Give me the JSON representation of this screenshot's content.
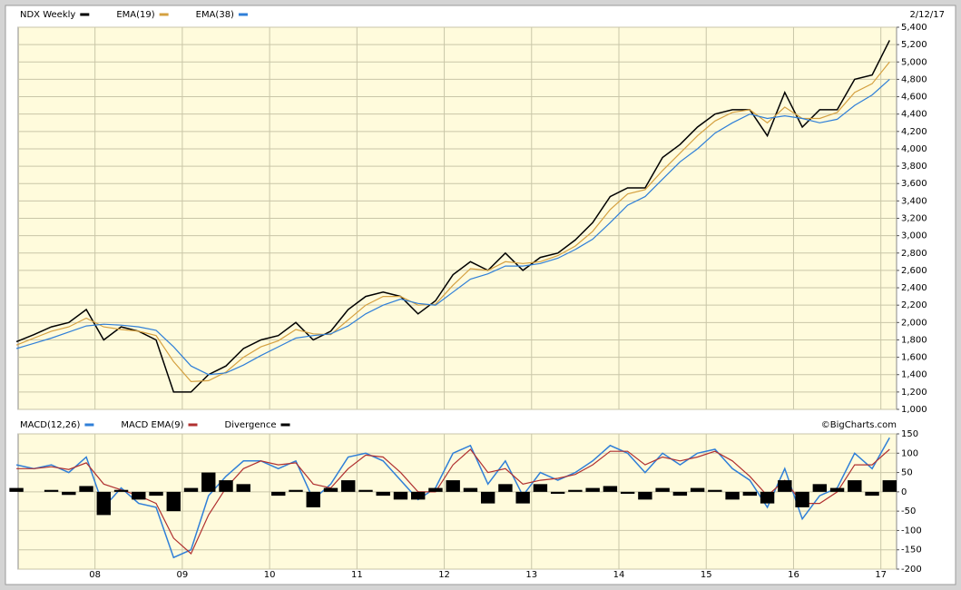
{
  "chart_data": [
    {
      "type": "line",
      "date": "2/12/17",
      "x": [
        2007.1,
        2007.3,
        2007.5,
        2007.7,
        2007.9,
        2008.1,
        2008.3,
        2008.5,
        2008.7,
        2008.9,
        2009.1,
        2009.3,
        2009.5,
        2009.7,
        2009.9,
        2010.1,
        2010.3,
        2010.5,
        2010.7,
        2010.9,
        2011.1,
        2011.3,
        2011.5,
        2011.7,
        2011.9,
        2012.1,
        2012.3,
        2012.5,
        2012.7,
        2012.9,
        2013.1,
        2013.3,
        2013.5,
        2013.7,
        2013.9,
        2014.1,
        2014.3,
        2014.5,
        2014.7,
        2014.9,
        2015.1,
        2015.3,
        2015.5,
        2015.7,
        2015.9,
        2016.1,
        2016.3,
        2016.5,
        2016.7,
        2016.9,
        2017.1
      ],
      "series": [
        {
          "name": "NDX Weekly",
          "color": "#000000",
          "values": [
            1780,
            1860,
            1950,
            2000,
            2150,
            1800,
            1950,
            1900,
            1800,
            1200,
            1200,
            1400,
            1500,
            1700,
            1800,
            1850,
            2000,
            1800,
            1900,
            2150,
            2300,
            2350,
            2300,
            2100,
            2250,
            2550,
            2700,
            2600,
            2800,
            2600,
            2750,
            2800,
            2950,
            3150,
            3450,
            3550,
            3550,
            3900,
            4050,
            4250,
            4400,
            4450,
            4450,
            4150,
            4650,
            4250,
            4450,
            4450,
            4800,
            4850,
            5250
          ]
        },
        {
          "name": "EMA(19)",
          "color": "#d4a040",
          "values": [
            1740,
            1820,
            1900,
            1950,
            2050,
            1950,
            1920,
            1900,
            1850,
            1550,
            1320,
            1330,
            1430,
            1600,
            1720,
            1790,
            1920,
            1870,
            1860,
            2030,
            2200,
            2300,
            2300,
            2200,
            2210,
            2430,
            2620,
            2600,
            2700,
            2680,
            2700,
            2770,
            2880,
            3050,
            3300,
            3480,
            3530,
            3750,
            3950,
            4150,
            4320,
            4420,
            4450,
            4300,
            4480,
            4350,
            4350,
            4420,
            4650,
            4750,
            5000
          ]
        },
        {
          "name": "EMA(38)",
          "color": "#2f7fd8",
          "values": [
            1700,
            1760,
            1820,
            1890,
            1960,
            1980,
            1970,
            1950,
            1910,
            1720,
            1500,
            1400,
            1420,
            1510,
            1620,
            1720,
            1820,
            1850,
            1870,
            1960,
            2100,
            2200,
            2270,
            2220,
            2200,
            2350,
            2500,
            2560,
            2650,
            2650,
            2680,
            2740,
            2840,
            2960,
            3150,
            3350,
            3450,
            3650,
            3850,
            4000,
            4180,
            4300,
            4400,
            4350,
            4380,
            4350,
            4300,
            4340,
            4500,
            4620,
            4800
          ]
        }
      ],
      "xlim": [
        2007.12,
        2017.18
      ],
      "xticks": [
        2008,
        2009,
        2010,
        2011,
        2012,
        2013,
        2014,
        2015,
        2016,
        2017
      ],
      "ylim": [
        1000,
        5400
      ],
      "yticks": [
        {
          "value": 1000,
          "label": "1,000"
        },
        {
          "value": 1200,
          "label": "1,200"
        },
        {
          "value": 1400,
          "label": "1,400"
        },
        {
          "value": 1600,
          "label": "1,600"
        },
        {
          "value": 1800,
          "label": "1,800"
        },
        {
          "value": 2000,
          "label": "2,000"
        },
        {
          "value": 2200,
          "label": "2,200"
        },
        {
          "value": 2400,
          "label": "2,400"
        },
        {
          "value": 2600,
          "label": "2,600"
        },
        {
          "value": 2800,
          "label": "2,800"
        },
        {
          "value": 3000,
          "label": "3,000"
        },
        {
          "value": 3200,
          "label": "3,200"
        },
        {
          "value": 3400,
          "label": "3,400"
        },
        {
          "value": 3600,
          "label": "3,600"
        },
        {
          "value": 3800,
          "label": "3,800"
        },
        {
          "value": 4000,
          "label": "4,000"
        },
        {
          "value": 4200,
          "label": "4,200"
        },
        {
          "value": 4400,
          "label": "4,400"
        },
        {
          "value": 4600,
          "label": "4,600"
        },
        {
          "value": 4800,
          "label": "4,800"
        },
        {
          "value": 5000,
          "label": "5,000"
        },
        {
          "value": 5200,
          "label": "5,200"
        },
        {
          "value": 5400,
          "label": "5,400"
        }
      ],
      "grid": true
    },
    {
      "type": "line",
      "credit": "©BigCharts.com",
      "x": [
        2007.1,
        2007.3,
        2007.5,
        2007.7,
        2007.9,
        2008.1,
        2008.3,
        2008.5,
        2008.7,
        2008.9,
        2009.1,
        2009.3,
        2009.5,
        2009.7,
        2009.9,
        2010.1,
        2010.3,
        2010.5,
        2010.7,
        2010.9,
        2011.1,
        2011.3,
        2011.5,
        2011.7,
        2011.9,
        2012.1,
        2012.3,
        2012.5,
        2012.7,
        2012.9,
        2013.1,
        2013.3,
        2013.5,
        2013.7,
        2013.9,
        2014.1,
        2014.3,
        2014.5,
        2014.7,
        2014.9,
        2015.1,
        2015.3,
        2015.5,
        2015.7,
        2015.9,
        2016.1,
        2016.3,
        2016.5,
        2016.7,
        2016.9,
        2017.1
      ],
      "series": [
        {
          "name": "MACD(12,26)",
          "color": "#2f7fd8",
          "values": [
            70,
            60,
            70,
            50,
            90,
            -40,
            10,
            -30,
            -40,
            -170,
            -150,
            -10,
            40,
            80,
            80,
            60,
            80,
            -20,
            20,
            90,
            100,
            80,
            30,
            -20,
            10,
            100,
            120,
            20,
            80,
            -10,
            50,
            30,
            50,
            80,
            120,
            100,
            50,
            100,
            70,
            100,
            110,
            60,
            30,
            -40,
            60,
            -70,
            -10,
            10,
            100,
            60,
            140
          ]
        },
        {
          "name": "MACD EMA(9)",
          "color": "#b03030",
          "values": [
            60,
            60,
            65,
            58,
            75,
            20,
            5,
            -10,
            -30,
            -120,
            -160,
            -60,
            10,
            60,
            80,
            70,
            75,
            20,
            10,
            60,
            95,
            90,
            50,
            0,
            0,
            70,
            110,
            50,
            60,
            20,
            30,
            35,
            45,
            70,
            105,
            105,
            70,
            90,
            80,
            90,
            105,
            80,
            40,
            -10,
            30,
            -30,
            -30,
            0,
            70,
            70,
            110
          ]
        },
        {
          "name": "Divergence",
          "color": "#000000",
          "kind": "bar",
          "values": [
            10,
            0,
            5,
            -8,
            15,
            -60,
            5,
            -20,
            -10,
            -50,
            10,
            50,
            30,
            20,
            0,
            -10,
            5,
            -40,
            10,
            30,
            5,
            -10,
            -20,
            -20,
            10,
            30,
            10,
            -30,
            20,
            -30,
            20,
            -5,
            5,
            10,
            15,
            -5,
            -20,
            10,
            -10,
            10,
            5,
            -20,
            -10,
            -30,
            30,
            -40,
            20,
            10,
            30,
            -10,
            30
          ]
        }
      ],
      "xlim": [
        2007.12,
        2017.18
      ],
      "xticks": [
        {
          "value": 2008,
          "label": "08"
        },
        {
          "value": 2009,
          "label": "09"
        },
        {
          "value": 2010,
          "label": "10"
        },
        {
          "value": 2011,
          "label": "11"
        },
        {
          "value": 2012,
          "label": "12"
        },
        {
          "value": 2013,
          "label": "13"
        },
        {
          "value": 2014,
          "label": "14"
        },
        {
          "value": 2015,
          "label": "15"
        },
        {
          "value": 2016,
          "label": "16"
        },
        {
          "value": 2017,
          "label": "17"
        }
      ],
      "ylim": [
        -200,
        150
      ],
      "yticks": [
        150,
        100,
        50,
        0,
        -50,
        -100,
        -150,
        -200
      ],
      "grid": true
    }
  ]
}
